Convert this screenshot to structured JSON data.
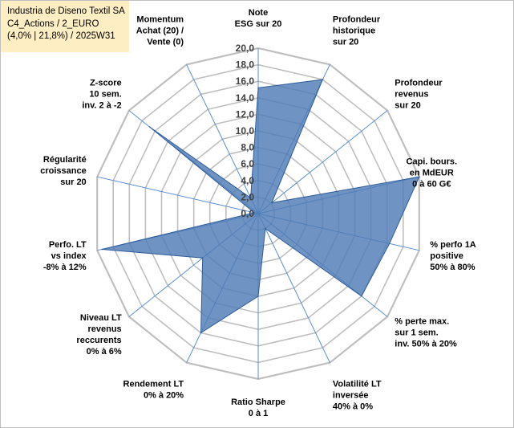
{
  "header": {
    "company": "Industria de Diseno Textil SA",
    "portfolio": "C4_Actions / 2_EURO",
    "stats": "(4,0% | 21,8%) / 2025W31"
  },
  "chart_data": {
    "type": "radar",
    "r_min": 0,
    "r_max": 20,
    "r_step": 2,
    "tick_labels": [
      "0,0",
      "2,0",
      "4,0",
      "6,0",
      "8,0",
      "10,0",
      "12,0",
      "14,0",
      "16,0",
      "18,0",
      "20,0"
    ],
    "axes": [
      {
        "label": [
          "Note",
          "ESG sur 20"
        ],
        "value": 15.2
      },
      {
        "label": [
          "Profondeur",
          "historique",
          "sur 20"
        ],
        "value": 18.0
      },
      {
        "label": [
          "Profondeur",
          "revenus",
          "sur 20"
        ],
        "value": 2.1
      },
      {
        "label": [
          "Capi. bours.",
          "en MdEUR",
          "0 à 60 G€"
        ],
        "value": 20.0
      },
      {
        "label": [
          "% perfo 1A",
          "positive",
          "50% à 80%"
        ],
        "value": 16.3
      },
      {
        "label": [
          "% perte max.",
          "sur 1 sem.",
          "inv. 50% à 20%"
        ],
        "value": 16.0
      },
      {
        "label": [
          "Volatilité LT",
          "inversée",
          "40% à 0%"
        ],
        "value": 2.0
      },
      {
        "label": [
          "Ratio Sharpe",
          "0 à 1"
        ],
        "value": 10.0
      },
      {
        "label": [
          "Rendement LT",
          "0% à 20%"
        ],
        "value": 16.0
      },
      {
        "label": [
          "Niveau LT",
          "revenus",
          "reccurents",
          "0% à 6%"
        ],
        "value": 8.6
      },
      {
        "label": [
          "Perfo. LT",
          "vs index",
          "-8% à 12%"
        ],
        "value": 19.4
      },
      {
        "label": [
          "Régularité",
          "croissance",
          "sur 20"
        ],
        "value": 0.5
      },
      {
        "label": [
          "Z-score",
          "10 sem.",
          "inv. 2 à -2"
        ],
        "value": 16.8
      },
      {
        "label": [
          "Momentum",
          "Achat (20) /",
          "Vente (0)"
        ],
        "value": 2.1
      }
    ],
    "colors": {
      "fill": "#4f7bb5",
      "stroke": "#2f5d9b",
      "grid": "#bfbfbf",
      "spoke": "#5b8fd0"
    }
  }
}
